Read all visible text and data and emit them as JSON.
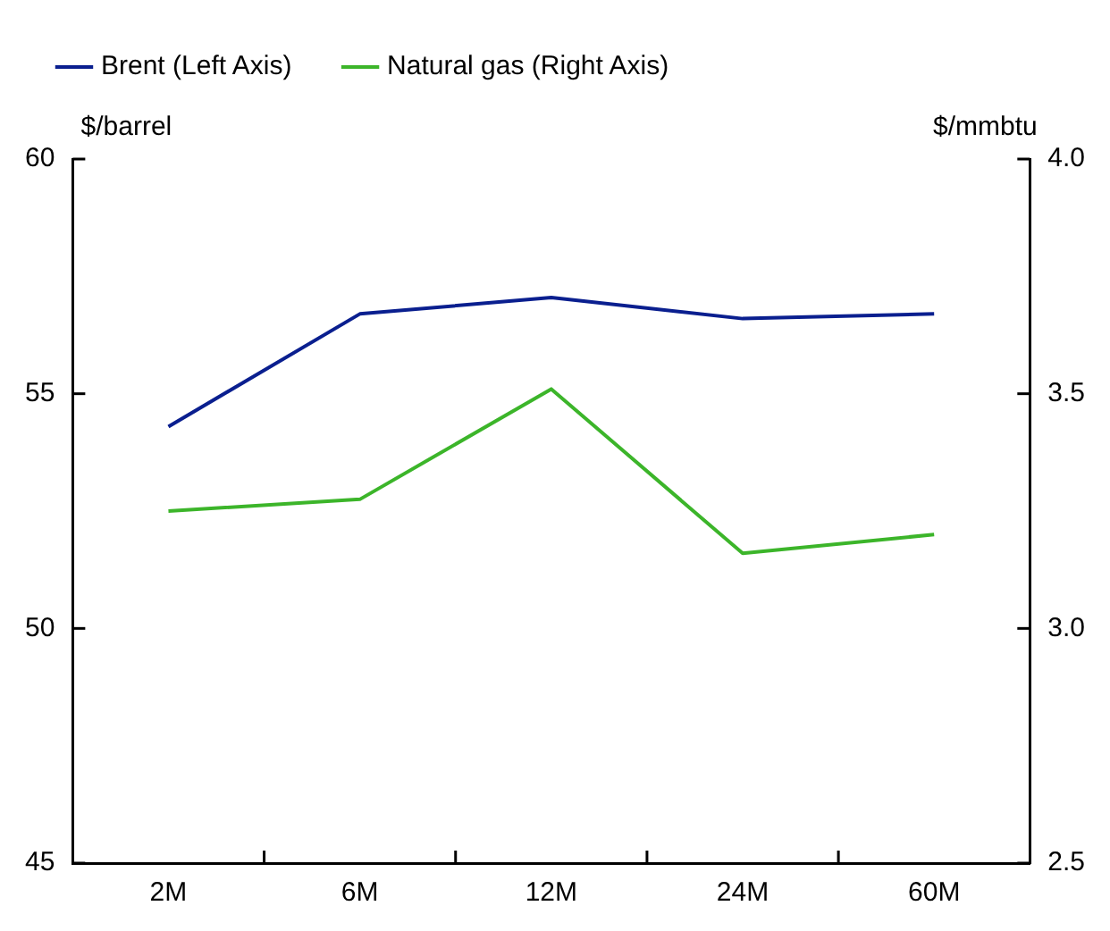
{
  "chart_data": {
    "type": "line",
    "ylabel": "$/barrel",
    "y2label": "$/mmbtu",
    "categories": [
      "2M",
      "6M",
      "12M",
      "24M",
      "60M"
    ],
    "series": [
      {
        "name": "Brent (Left Axis)",
        "color": "#0a1f8f",
        "values": [
          54.3,
          56.7,
          57.05,
          56.6,
          56.7
        ]
      },
      {
        "name": "Natural gas (Right Axis)",
        "color": "#3cb52a",
        "axis": "y2",
        "values": [
          3.25,
          3.275,
          3.51,
          3.16,
          3.2
        ]
      }
    ],
    "ylim": [
      45,
      60
    ],
    "yticks": [
      45,
      50,
      55,
      60
    ],
    "y2lim": [
      2.5,
      4.0
    ],
    "y2ticks": [
      {
        "value": 2.5,
        "label": "2.5"
      },
      {
        "value": 3.0,
        "label": "3.0"
      },
      {
        "value": 3.5,
        "label": "3.5"
      },
      {
        "value": 4.0,
        "label": "4.0"
      }
    ],
    "grid": false,
    "legend": "top left",
    "marker": "none",
    "line_style": "solid"
  }
}
